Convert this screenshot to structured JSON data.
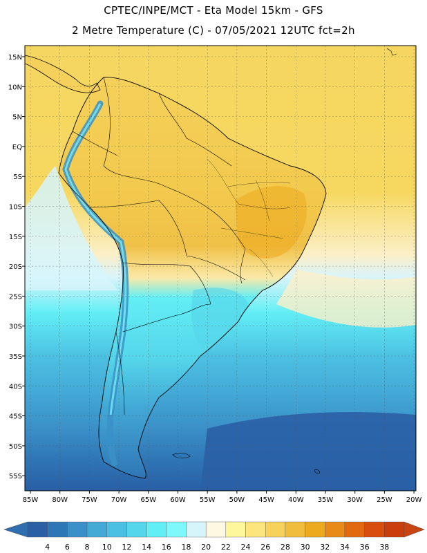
{
  "header": {
    "line1": "CPTEC/INPE/MCT -  Eta Model 15km - GFS",
    "line2": "2 Metre Temperature (C) - 07/05/2021 12UTC fct=2h"
  },
  "axes": {
    "lat_labels": [
      "15N",
      "10N",
      "5N",
      "EQ",
      "5S",
      "10S",
      "15S",
      "20S",
      "25S",
      "30S",
      "35S",
      "40S",
      "45S",
      "50S",
      "55S"
    ],
    "lon_labels": [
      "85W",
      "80W",
      "75W",
      "70W",
      "65W",
      "60W",
      "55W",
      "50W",
      "45W",
      "40W",
      "35W",
      "30W",
      "25W",
      "20W"
    ]
  },
  "colorbar": {
    "labels": [
      "4",
      "6",
      "8",
      "10",
      "12",
      "14",
      "16",
      "18",
      "20",
      "22",
      "24",
      "26",
      "28",
      "30",
      "32",
      "34",
      "36",
      "38"
    ],
    "colors": [
      "#2a5fa5",
      "#2f76b6",
      "#3b90c8",
      "#43a9d6",
      "#4cc0e2",
      "#55d6ea",
      "#62eef5",
      "#7ff8fb",
      "#d6f5fb",
      "#fdf8e2",
      "#fef79c",
      "#fbe57c",
      "#f7d25a",
      "#f1bd3c",
      "#ecaa1e",
      "#e88a18",
      "#e16a10",
      "#d84e0e",
      "#c93e0c"
    ],
    "low_color": "#2f6fb0",
    "high_color": "#c94410"
  },
  "map": {
    "region": "South America",
    "lon_range": [
      -85,
      -20
    ],
    "lat_range": [
      -58,
      16
    ],
    "ocean_north_color": "#f5d660",
    "ocean_south_color": "#2a5fa5"
  }
}
